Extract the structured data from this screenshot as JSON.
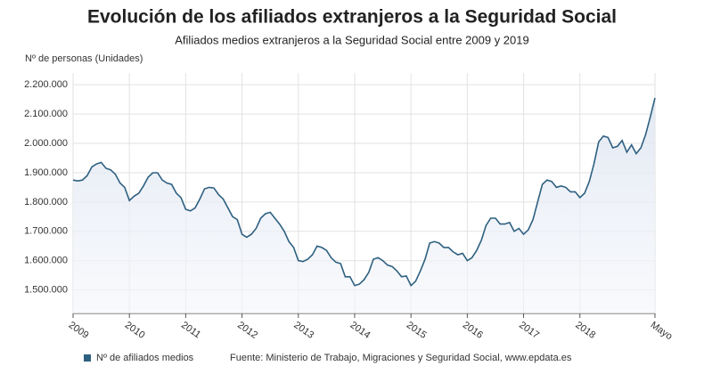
{
  "chart_data": {
    "type": "line",
    "title": "Evolución de los afiliados extranjeros a la Seguridad Social",
    "subtitle": "Afiliados medios extranjeros a la Seguridad Social entre 2009 y 2019",
    "y_label": "Nº de personas (Unidades)",
    "source": "Fuente: Ministerio de Trabajo, Migraciones y Seguridad Social, www.epdata.es",
    "categories": [
      "2009",
      null,
      null,
      null,
      null,
      null,
      null,
      null,
      null,
      null,
      null,
      null,
      "2010",
      null,
      null,
      null,
      null,
      null,
      null,
      null,
      null,
      null,
      null,
      null,
      "2011",
      null,
      null,
      null,
      null,
      null,
      null,
      null,
      null,
      null,
      null,
      null,
      "2012",
      null,
      null,
      null,
      null,
      null,
      null,
      null,
      null,
      null,
      null,
      null,
      "2013",
      null,
      null,
      null,
      null,
      null,
      null,
      null,
      null,
      null,
      null,
      null,
      "2014",
      null,
      null,
      null,
      null,
      null,
      null,
      null,
      null,
      null,
      null,
      null,
      "2015",
      null,
      null,
      null,
      null,
      null,
      null,
      null,
      null,
      null,
      null,
      null,
      "2016",
      null,
      null,
      null,
      null,
      null,
      null,
      null,
      null,
      null,
      null,
      null,
      "2017",
      null,
      null,
      null,
      null,
      null,
      null,
      null,
      null,
      null,
      null,
      null,
      "2018",
      null,
      null,
      null,
      null,
      null,
      null,
      null,
      null,
      null,
      null,
      null,
      null,
      null,
      null,
      null,
      "Mayo"
    ],
    "series": [
      {
        "name": "Nº de afiliados medios",
        "color": "#2e6080",
        "values": [
          1875000,
          1872000,
          1875000,
          1890000,
          1920000,
          1930000,
          1935000,
          1915000,
          1910000,
          1895000,
          1865000,
          1850000,
          1805000,
          1820000,
          1830000,
          1855000,
          1885000,
          1900000,
          1900000,
          1875000,
          1865000,
          1860000,
          1830000,
          1815000,
          1775000,
          1770000,
          1780000,
          1810000,
          1845000,
          1850000,
          1848000,
          1825000,
          1810000,
          1780000,
          1750000,
          1740000,
          1690000,
          1680000,
          1690000,
          1710000,
          1745000,
          1760000,
          1765000,
          1745000,
          1725000,
          1700000,
          1665000,
          1645000,
          1600000,
          1597000,
          1605000,
          1620000,
          1650000,
          1645000,
          1635000,
          1610000,
          1595000,
          1590000,
          1545000,
          1545000,
          1515000,
          1520000,
          1535000,
          1560000,
          1605000,
          1610000,
          1600000,
          1585000,
          1580000,
          1565000,
          1545000,
          1548000,
          1515000,
          1530000,
          1565000,
          1605000,
          1660000,
          1665000,
          1660000,
          1645000,
          1645000,
          1630000,
          1620000,
          1625000,
          1600000,
          1610000,
          1635000,
          1670000,
          1720000,
          1745000,
          1745000,
          1725000,
          1725000,
          1730000,
          1700000,
          1710000,
          1690000,
          1705000,
          1740000,
          1800000,
          1860000,
          1875000,
          1870000,
          1850000,
          1855000,
          1850000,
          1835000,
          1835000,
          1815000,
          1830000,
          1870000,
          1930000,
          2005000,
          2025000,
          2020000,
          1985000,
          1990000,
          2010000,
          1970000,
          1995000,
          1965000,
          1985000,
          2030000,
          2090000,
          2155000
        ]
      }
    ],
    "ylim": [
      1420000,
      2240000
    ],
    "yticks": [
      {
        "value": 1500000,
        "label": "1.500.000"
      },
      {
        "value": 1600000,
        "label": "1.600.000"
      },
      {
        "value": 1700000,
        "label": "1.700.000"
      },
      {
        "value": 1800000,
        "label": "1.800.000"
      },
      {
        "value": 1900000,
        "label": "1.900.000"
      },
      {
        "value": 2000000,
        "label": "2.000.000"
      },
      {
        "value": 2100000,
        "label": "2.100.000"
      },
      {
        "value": 2200000,
        "label": "2.200.000"
      }
    ],
    "grid": true
  }
}
